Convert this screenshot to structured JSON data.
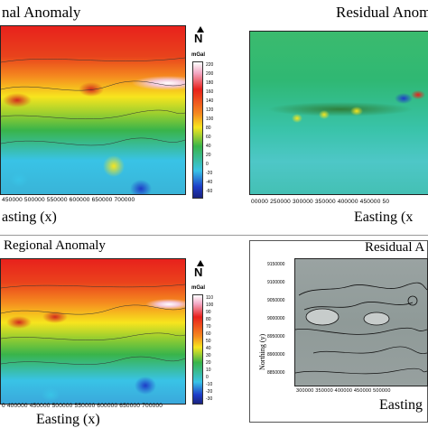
{
  "colors": {
    "high": "#e8211c",
    "orange": "#f58a1f",
    "yellow": "#f7e51e",
    "green": "#39b44a",
    "cyan": "#39c3e6",
    "blue": "#1e3cc8",
    "pink": "#f39ab4"
  },
  "top_left": {
    "title": "nal Anomaly",
    "unit": "mGal",
    "north": "N",
    "x_ticks": "450000  500000  550000  600000  650000  700000",
    "x_label": "asting (x)",
    "colorbar_ticks": [
      "220",
      "200",
      "180",
      "160",
      "140",
      "120",
      "100",
      "80",
      "60",
      "40",
      "20",
      "0",
      "-20",
      "-40",
      "-60"
    ]
  },
  "top_right": {
    "title": "Residual Anoma",
    "x_ticks": "00000  250000  300000  350000  400000  450000  50",
    "x_label": "Easting (x"
  },
  "bottom_left": {
    "title": "Regional Anomaly",
    "unit": "mGal",
    "north": "N",
    "x_ticks": "0  400000  450000  500000  550000  600000  650000  700000",
    "x_label": "Easting (x)",
    "colorbar_ticks": [
      "110",
      "100",
      "90",
      "80",
      "70",
      "60",
      "50",
      "40",
      "30",
      "20",
      "10",
      "0",
      "-10",
      "-20",
      "-30"
    ]
  },
  "bottom_right": {
    "title": "Residual A",
    "y_label": "Northing (y)",
    "y_ticks": [
      "9150000",
      "9100000",
      "9050000",
      "9000000",
      "8950000",
      "8900000",
      "8850000"
    ],
    "x_ticks": "300000  350000  400000  450000  500000",
    "x_label": "Easting"
  }
}
